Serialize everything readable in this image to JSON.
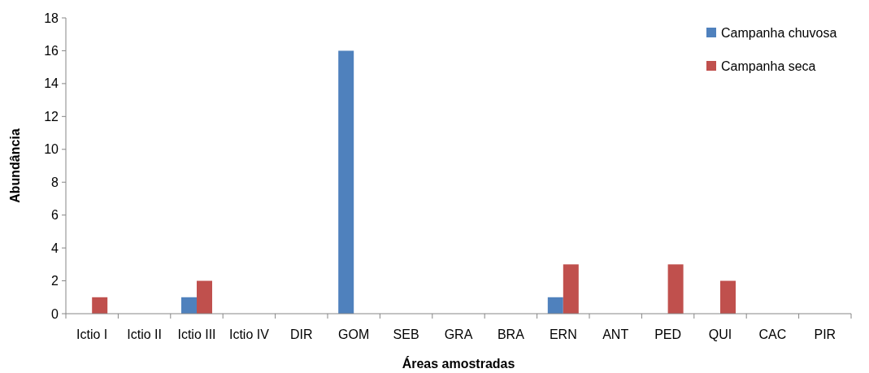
{
  "chart_data": {
    "type": "bar",
    "xlabel": "Áreas amostradas",
    "ylabel": "Abundância",
    "categories": [
      "Ictio I",
      "Ictio II",
      "Ictio III",
      "Ictio IV",
      "DIR",
      "GOM",
      "SEB",
      "GRA",
      "BRA",
      "ERN",
      "ANT",
      "PED",
      "QUI",
      "CAC",
      "PIR"
    ],
    "series": [
      {
        "name": "Campanha chuvosa",
        "color": "#4f81bd",
        "values": [
          0,
          0,
          1,
          0,
          0,
          16,
          0,
          0,
          0,
          1,
          0,
          0,
          0,
          0,
          0
        ]
      },
      {
        "name": "Campanha seca",
        "color": "#c0504d",
        "values": [
          1,
          0,
          2,
          0,
          0,
          0,
          0,
          0,
          0,
          3,
          0,
          3,
          2,
          0,
          0
        ]
      }
    ],
    "ylim": [
      0,
      18
    ],
    "yticks": [
      0,
      2,
      4,
      6,
      8,
      10,
      12,
      14,
      16,
      18
    ],
    "grid": false,
    "legend": "top right"
  }
}
